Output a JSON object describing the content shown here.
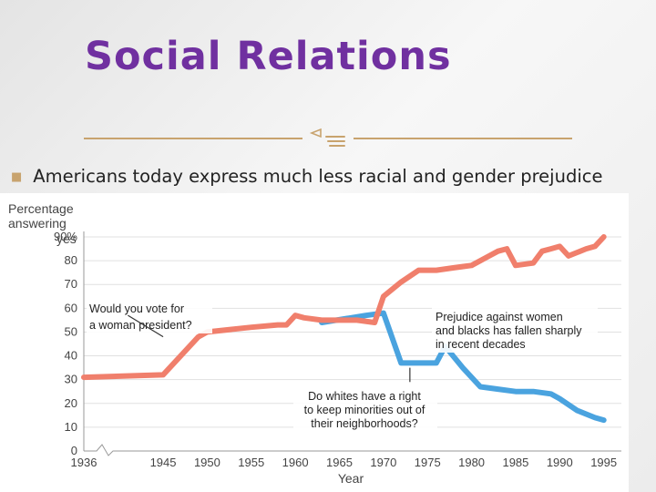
{
  "slide": {
    "title": "Social Relations",
    "bullet": "Americans today express much less racial and gender prejudice"
  },
  "colors": {
    "title": "#7030a0",
    "accent": "#c8a36e",
    "woman_president_series": "#f07f6c",
    "minorities_series": "#4aa3df"
  },
  "chart_data": {
    "type": "line",
    "ylabel": [
      "Percentage",
      "answering",
      "yes"
    ],
    "xlabel": "Year",
    "xlim": [
      1936,
      1997
    ],
    "ylim": [
      0,
      90
    ],
    "xticks": [
      1936,
      1945,
      1950,
      1955,
      1960,
      1965,
      1970,
      1975,
      1980,
      1985,
      1990,
      1995
    ],
    "xtick_labels": [
      "1936",
      "1945",
      "1950",
      "1955",
      "1960",
      "1965",
      "1970",
      "1975",
      "1980",
      "1985",
      "1990",
      "1995"
    ],
    "yticks": [
      0,
      10,
      20,
      30,
      40,
      50,
      60,
      70,
      80,
      90
    ],
    "ytick_labels": [
      "0",
      "10",
      "20",
      "30",
      "40",
      "50",
      "60",
      "70",
      "80",
      "90%"
    ],
    "grid": true,
    "series": [
      {
        "key": "woman_president",
        "x": [
          1936,
          1945,
          1949,
          1950,
          1955,
          1958,
          1959,
          1960,
          1961,
          1963,
          1967,
          1969,
          1970,
          1972,
          1974,
          1975,
          1976,
          1978,
          1980,
          1982,
          1983,
          1984,
          1985,
          1987,
          1988,
          1989,
          1990,
          1991,
          1993,
          1994,
          1995
        ],
        "y": [
          31,
          32,
          48,
          50,
          52,
          53,
          53,
          57,
          56,
          55,
          55,
          54,
          65,
          71,
          76,
          76,
          76,
          77,
          78,
          82,
          84,
          85,
          78,
          79,
          84,
          85,
          86,
          82,
          85,
          86,
          90
        ]
      },
      {
        "key": "minorities",
        "x": [
          1963,
          1968,
          1970,
          1972,
          1975,
          1976,
          1977,
          1979,
          1981,
          1983,
          1985,
          1987,
          1989,
          1990,
          1992,
          1994,
          1995
        ],
        "y": [
          54,
          57,
          58,
          37,
          37,
          37,
          44,
          35,
          27,
          26,
          25,
          25,
          24,
          22,
          17,
          14,
          13
        ]
      }
    ],
    "annotations": [
      {
        "lines": [
          "Would you vote for",
          "a woman president?"
        ],
        "pointer": {
          "x": 1941,
          "y_from": 57,
          "x_to": 1945,
          "y_to": 48
        }
      },
      {
        "lines": [
          "Prejudice against women",
          "and blacks has fallen sharply",
          "in recent decades"
        ]
      },
      {
        "lines": [
          "Do whites have a right",
          "to keep minorities out of",
          "their neighborhoods?"
        ],
        "pointer": {
          "x": 1973,
          "y_from": 29,
          "x_to": 1973,
          "y_to": 35
        }
      }
    ]
  }
}
